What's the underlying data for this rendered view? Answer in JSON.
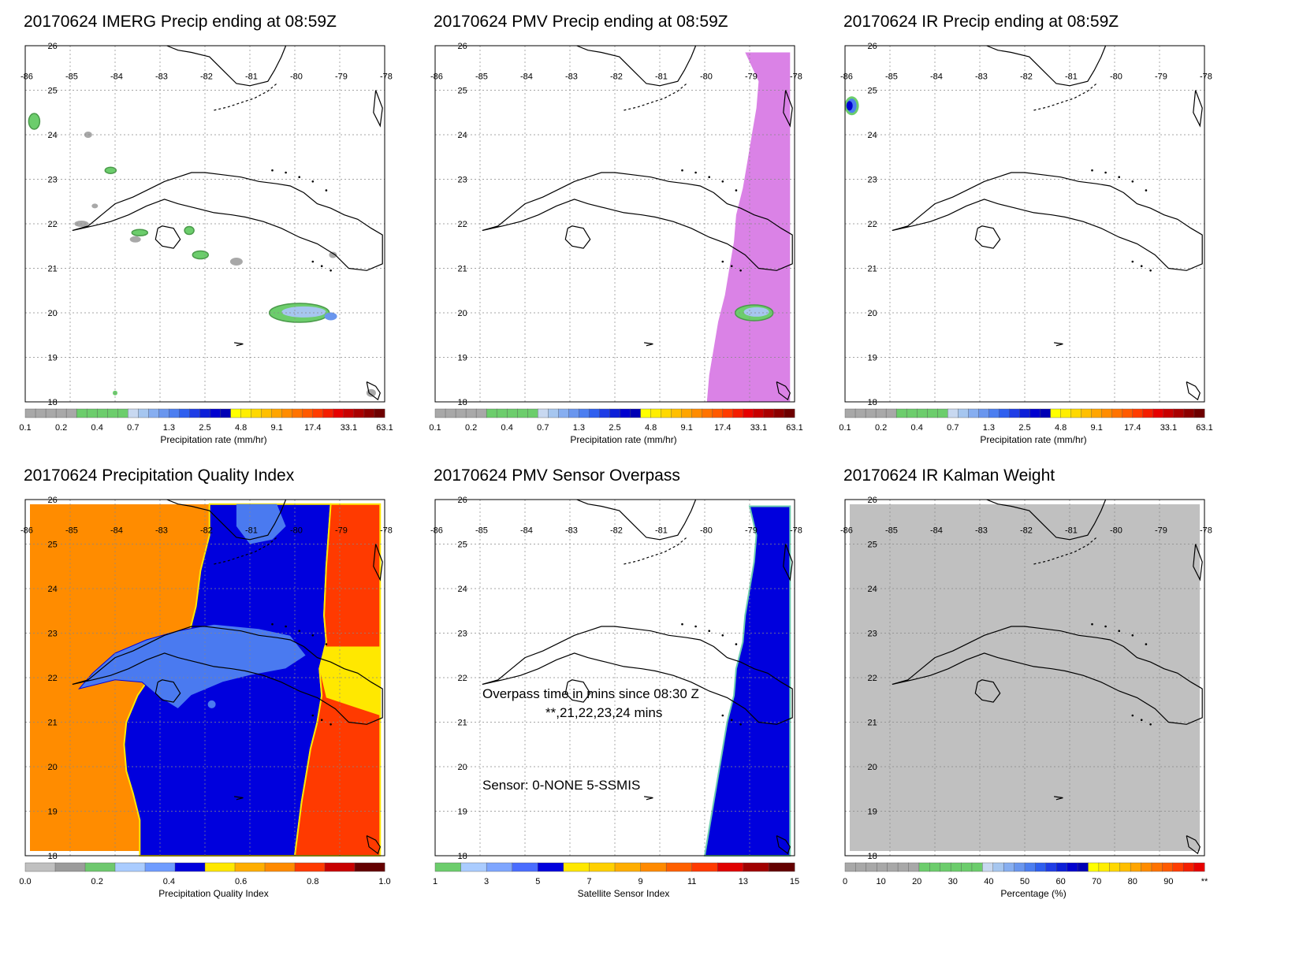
{
  "colors": {
    "precip_scale": [
      "#a8a8a8",
      "#a8a8a8",
      "#a8a8a8",
      "#a8a8a8",
      "#a8a8a8",
      "#6ccd6c",
      "#6ccd6c",
      "#6ccd6c",
      "#6ccd6c",
      "#6ccd6c",
      "#c8d8f0",
      "#a6c6ef",
      "#87aef0",
      "#6a96ee",
      "#4c7ef0",
      "#2f5fef",
      "#1f3de6",
      "#0c1fd8",
      "#0000cf",
      "#0000b4",
      "#ffff00",
      "#ffee00",
      "#ffd800",
      "#ffbf00",
      "#ffa500",
      "#ff8c00",
      "#ff7300",
      "#ff5a00",
      "#ff3c00",
      "#f41e00",
      "#e60000",
      "#c80000",
      "#aa0000",
      "#8c0000",
      "#6e0000"
    ],
    "pqi_scale": [
      "#c0c0c0",
      "#9b9b9b",
      "#6ec86e",
      "#aaccff",
      "#6f9cff",
      "#0000dd",
      "#ffe800",
      "#ffae00",
      "#ff8a00",
      "#ff3a00",
      "#c80000",
      "#640000"
    ],
    "sensor_scale": [
      "#6ccd6c",
      "#aaccff",
      "#7fa6ff",
      "#4a6dff",
      "#0000dd",
      "#ffe800",
      "#ffd000",
      "#ffae00",
      "#ff8a00",
      "#ff6000",
      "#ff3a00",
      "#e00000",
      "#a00000",
      "#640000"
    ],
    "kalman_scale": [
      "#a8a8a8",
      "#a8a8a8",
      "#a8a8a8",
      "#a8a8a8",
      "#a8a8a8",
      "#a8a8a8",
      "#a8a8a8",
      "#6ccd6c",
      "#6ccd6c",
      "#6ccd6c",
      "#6ccd6c",
      "#6ccd6c",
      "#6ccd6c",
      "#c8d8f0",
      "#a6c6ef",
      "#87aef0",
      "#6a96ee",
      "#4c7ef0",
      "#2f5fef",
      "#1f3de6",
      "#0c1fd8",
      "#0000cf",
      "#0000b4",
      "#ffff00",
      "#ffee00",
      "#ffd800",
      "#ffbf00",
      "#ffa500",
      "#ff8c00",
      "#ff7300",
      "#ff5a00",
      "#ff3c00",
      "#f41e00",
      "#e60000"
    ],
    "pmv_swath": "#da82e6",
    "pqi_orange": "#ff8c00",
    "pqi_blue": "#0000dd",
    "pqi_light_blue": "#4a7af0",
    "pqi_red": "#ff3a00",
    "pqi_yellow": "#ffe800",
    "sensor_blue": "#0000dd",
    "kalman_gray": "#c0c0c0"
  },
  "axes": {
    "lat_labels": [
      "26",
      "25",
      "24",
      "23",
      "22",
      "21",
      "20",
      "19",
      "18"
    ],
    "lon_labels": [
      "-86",
      "-85",
      "-84",
      "-83",
      "-82",
      "-81",
      "-80",
      "-79",
      "-78"
    ]
  },
  "panels": [
    {
      "id": "imerg",
      "title": "20170624 IMERG Precip ending at 08:59Z",
      "colorbar_ticks": [
        "0.1",
        "0.2",
        "0.4",
        "0.7",
        "1.3",
        "2.5",
        "4.8",
        "9.1",
        "17.4",
        "33.1",
        "63.1"
      ],
      "colorbar_label": "Precipitation rate (mm/hr)"
    },
    {
      "id": "pmv",
      "title": "20170624 PMV Precip ending at 08:59Z",
      "colorbar_ticks": [
        "0.1",
        "0.2",
        "0.4",
        "0.7",
        "1.3",
        "2.5",
        "4.8",
        "9.1",
        "17.4",
        "33.1",
        "63.1"
      ],
      "colorbar_label": "Precipitation rate (mm/hr)"
    },
    {
      "id": "ir",
      "title": "20170624 IR Precip ending at 08:59Z",
      "colorbar_ticks": [
        "0.1",
        "0.2",
        "0.4",
        "0.7",
        "1.3",
        "2.5",
        "4.8",
        "9.1",
        "17.4",
        "33.1",
        "63.1"
      ],
      "colorbar_label": "Precipitation rate (mm/hr)"
    },
    {
      "id": "pqi",
      "title": "20170624 Precipitation Quality Index",
      "colorbar_ticks": [
        "0.0",
        "0.2",
        "0.4",
        "0.6",
        "0.8",
        "1.0"
      ],
      "colorbar_label": "Precipitation Quality Index"
    },
    {
      "id": "sensor",
      "title": "20170624 PMV Sensor Overpass",
      "colorbar_ticks": [
        "1",
        "3",
        "5",
        "7",
        "9",
        "11",
        "13",
        "15"
      ],
      "colorbar_label": "Satellite Sensor Index",
      "annotation_line1": "Overpass time in mins since 08:30 Z",
      "annotation_line2": "**,21,22,23,24 mins",
      "annotation_line3": "Sensor:   0-NONE  5-SSMIS"
    },
    {
      "id": "kalman",
      "title": "20170624 IR Kalman Weight",
      "colorbar_ticks": [
        "0",
        "10",
        "20",
        "30",
        "40",
        "50",
        "60",
        "70",
        "80",
        "90",
        "**"
      ],
      "colorbar_label": "Percentage (%)"
    }
  ]
}
